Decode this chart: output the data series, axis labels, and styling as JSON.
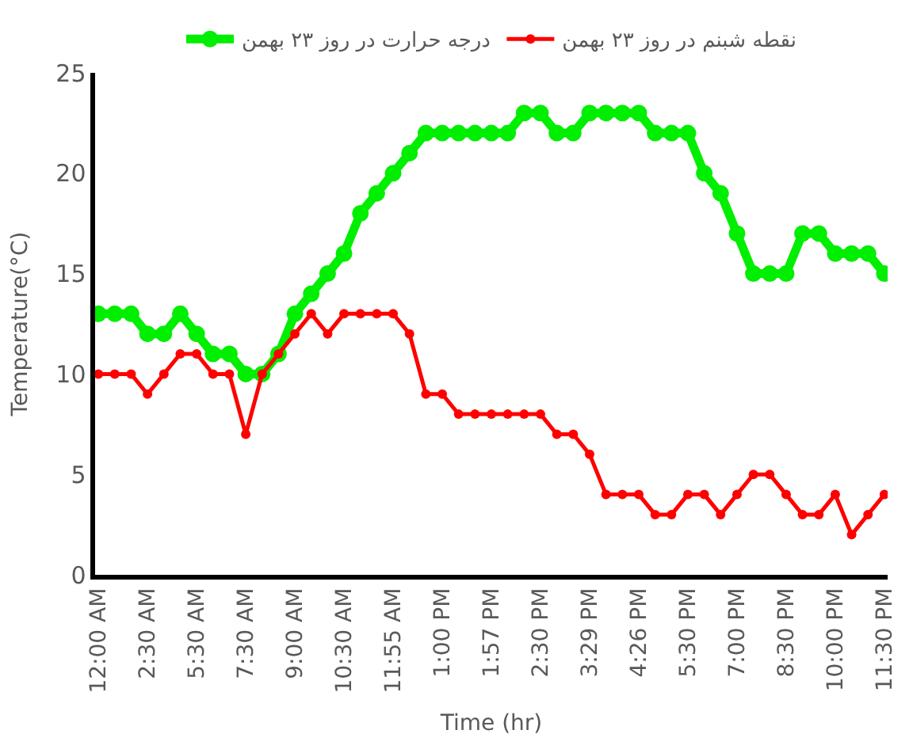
{
  "chart_data": {
    "type": "line",
    "xlabel": "Time (hr)",
    "ylabel": "Temperature(°C)",
    "categories": [
      "12:00 AM",
      null,
      null,
      "2:30 AM",
      null,
      null,
      "5:30 AM",
      null,
      null,
      "7:30 AM",
      null,
      null,
      "9:00 AM",
      null,
      null,
      "10:30 AM",
      null,
      null,
      "11:55 AM",
      null,
      null,
      "1:00 PM",
      null,
      null,
      "1:57 PM",
      null,
      null,
      "2:30 PM",
      null,
      null,
      "3:29 PM",
      null,
      null,
      "4:26 PM",
      null,
      null,
      "5:30 PM",
      null,
      null,
      "7:00 PM",
      null,
      null,
      "8:30 PM",
      null,
      null,
      "10:00 PM",
      null,
      null,
      "11:30 PM"
    ],
    "series": [
      {
        "name": "درجه حرارت در روز ۲۳ بهمن",
        "color": "#00ee00",
        "values": [
          13,
          13,
          13,
          12,
          12,
          13,
          12,
          11,
          11,
          10,
          10,
          11,
          13,
          14,
          15,
          16,
          18,
          19,
          20,
          21,
          22,
          22,
          22,
          22,
          22,
          22,
          23,
          23,
          22,
          22,
          23,
          23,
          23,
          23,
          22,
          22,
          22,
          20,
          19,
          17,
          15,
          15,
          15,
          17,
          17,
          16,
          16,
          16,
          15
        ]
      },
      {
        "name": "نقطه شبنم در روز ۲۳ بهمن",
        "color": "#ff0000",
        "values": [
          10,
          10,
          10,
          9,
          10,
          11,
          11,
          10,
          10,
          7,
          10,
          11,
          12,
          13,
          12,
          13,
          13,
          13,
          13,
          12,
          9,
          9,
          8,
          8,
          8,
          8,
          8,
          8,
          7,
          7,
          6,
          4,
          4,
          4,
          3,
          3,
          4,
          4,
          3,
          4,
          5,
          5,
          4,
          3,
          3,
          4,
          2,
          3,
          4
        ]
      }
    ],
    "ylim": [
      0,
      25
    ],
    "yticks": [
      0,
      5,
      10,
      15,
      20,
      25
    ],
    "grid": false,
    "legend": "top",
    "marker": "circle",
    "line_style": "solid"
  }
}
